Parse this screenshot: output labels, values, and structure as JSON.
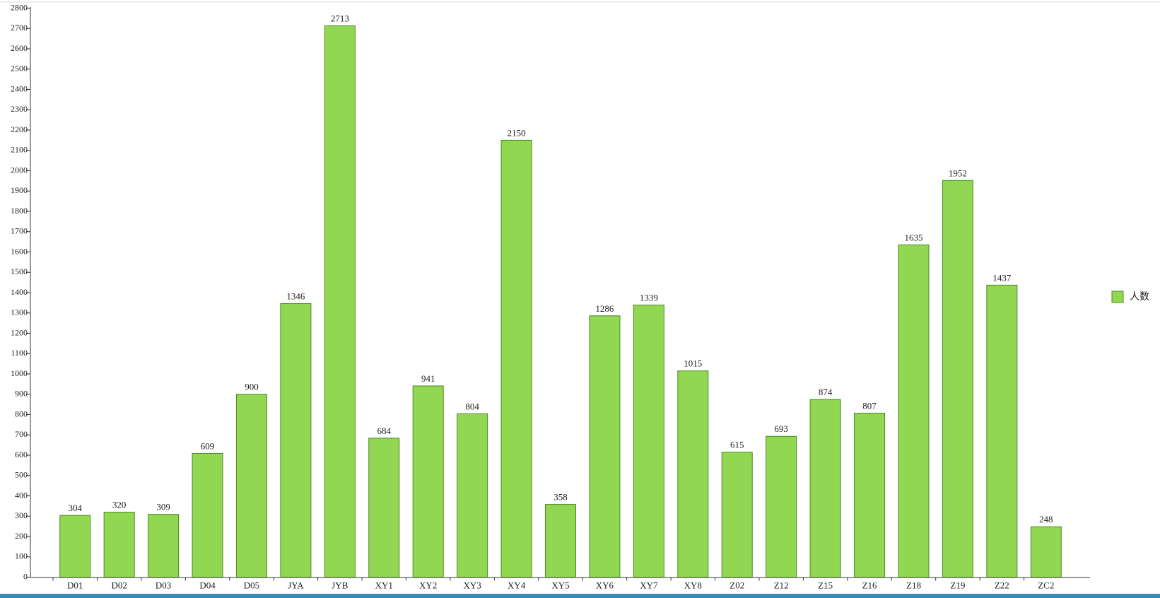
{
  "chart_data": {
    "type": "bar",
    "categories": [
      "D01",
      "D02",
      "D03",
      "D04",
      "D05",
      "JYA",
      "JYB",
      "XY1",
      "XY2",
      "XY3",
      "XY4",
      "XY5",
      "XY6",
      "XY7",
      "XY8",
      "Z02",
      "Z12",
      "Z15",
      "Z16",
      "Z18",
      "Z19",
      "Z22",
      "ZC2"
    ],
    "series": [
      {
        "name": "人数",
        "color": "#92d751",
        "values": [
          304,
          320,
          309,
          609,
          900,
          1346,
          2713,
          684,
          941,
          804,
          2150,
          358,
          1286,
          1339,
          1015,
          615,
          693,
          874,
          807,
          1635,
          1952,
          1437,
          248
        ]
      }
    ],
    "ylim": [
      0,
      2800
    ],
    "yticks": [
      0,
      100,
      200,
      300,
      400,
      500,
      600,
      700,
      800,
      900,
      1000,
      1100,
      1200,
      1300,
      1400,
      1500,
      1600,
      1700,
      1800,
      1900,
      2000,
      2100,
      2200,
      2300,
      2400,
      2500,
      2600,
      2700,
      2800
    ],
    "legend": "right"
  }
}
